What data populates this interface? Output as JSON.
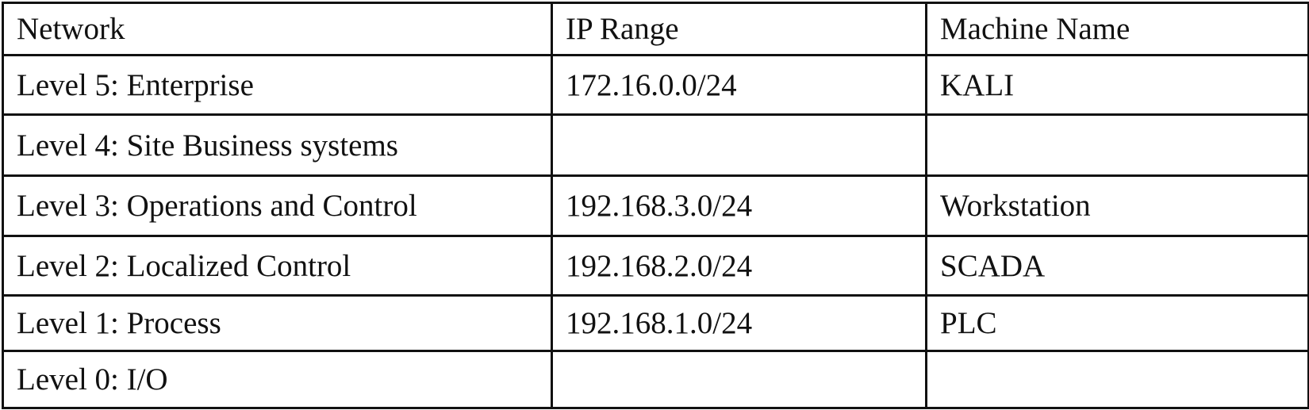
{
  "table": {
    "headers": {
      "network": "Network",
      "ip_range": "IP Range",
      "machine_name": "Machine Name"
    },
    "rows": [
      {
        "network": "Level 5: Enterprise",
        "ip_range": "172.16.0.0/24",
        "machine_name": "KALI"
      },
      {
        "network": "Level 4: Site Business systems",
        "ip_range": "",
        "machine_name": ""
      },
      {
        "network": "Level 3: Operations and Control",
        "ip_range": "192.168.3.0/24",
        "machine_name": "Workstation"
      },
      {
        "network": "Level 2: Localized Control",
        "ip_range": "192.168.2.0/24",
        "machine_name": "SCADA"
      },
      {
        "network": "Level 1: Process",
        "ip_range": "192.168.1.0/24",
        "machine_name": "PLC"
      },
      {
        "network": "Level 0: I/O",
        "ip_range": "",
        "machine_name": ""
      }
    ]
  }
}
